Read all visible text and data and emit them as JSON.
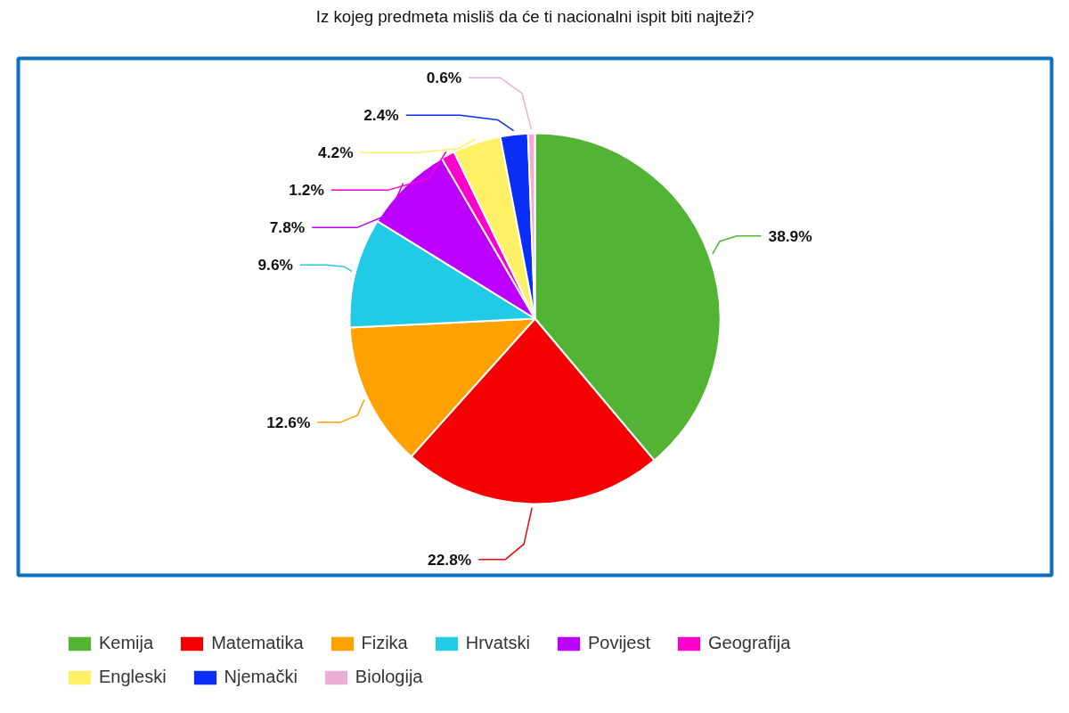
{
  "chart_data": {
    "type": "pie",
    "title": "Iz kojeg predmeta misliš da će ti nacionalni ispit biti najteži?",
    "categories": [
      "Kemija",
      "Matematika",
      "Fizika",
      "Hrvatski",
      "Povijest",
      "Geografija",
      "Engleski",
      "Njemački",
      "Biologija"
    ],
    "values": [
      38.9,
      22.8,
      12.6,
      9.6,
      7.8,
      1.2,
      4.2,
      2.4,
      0.6
    ],
    "value_labels": [
      "38.9%",
      "22.8%",
      "12.6%",
      "9.6%",
      "7.8%",
      "1.2%",
      "4.2%",
      "2.4%",
      "0.6%"
    ],
    "colors": [
      "#52b334",
      "#f50000",
      "#ffa200",
      "#22cbe5",
      "#bb00ff",
      "#ff00cc",
      "#fff066",
      "#0a2ef5",
      "#ebaed6"
    ],
    "legend": "bottom"
  }
}
